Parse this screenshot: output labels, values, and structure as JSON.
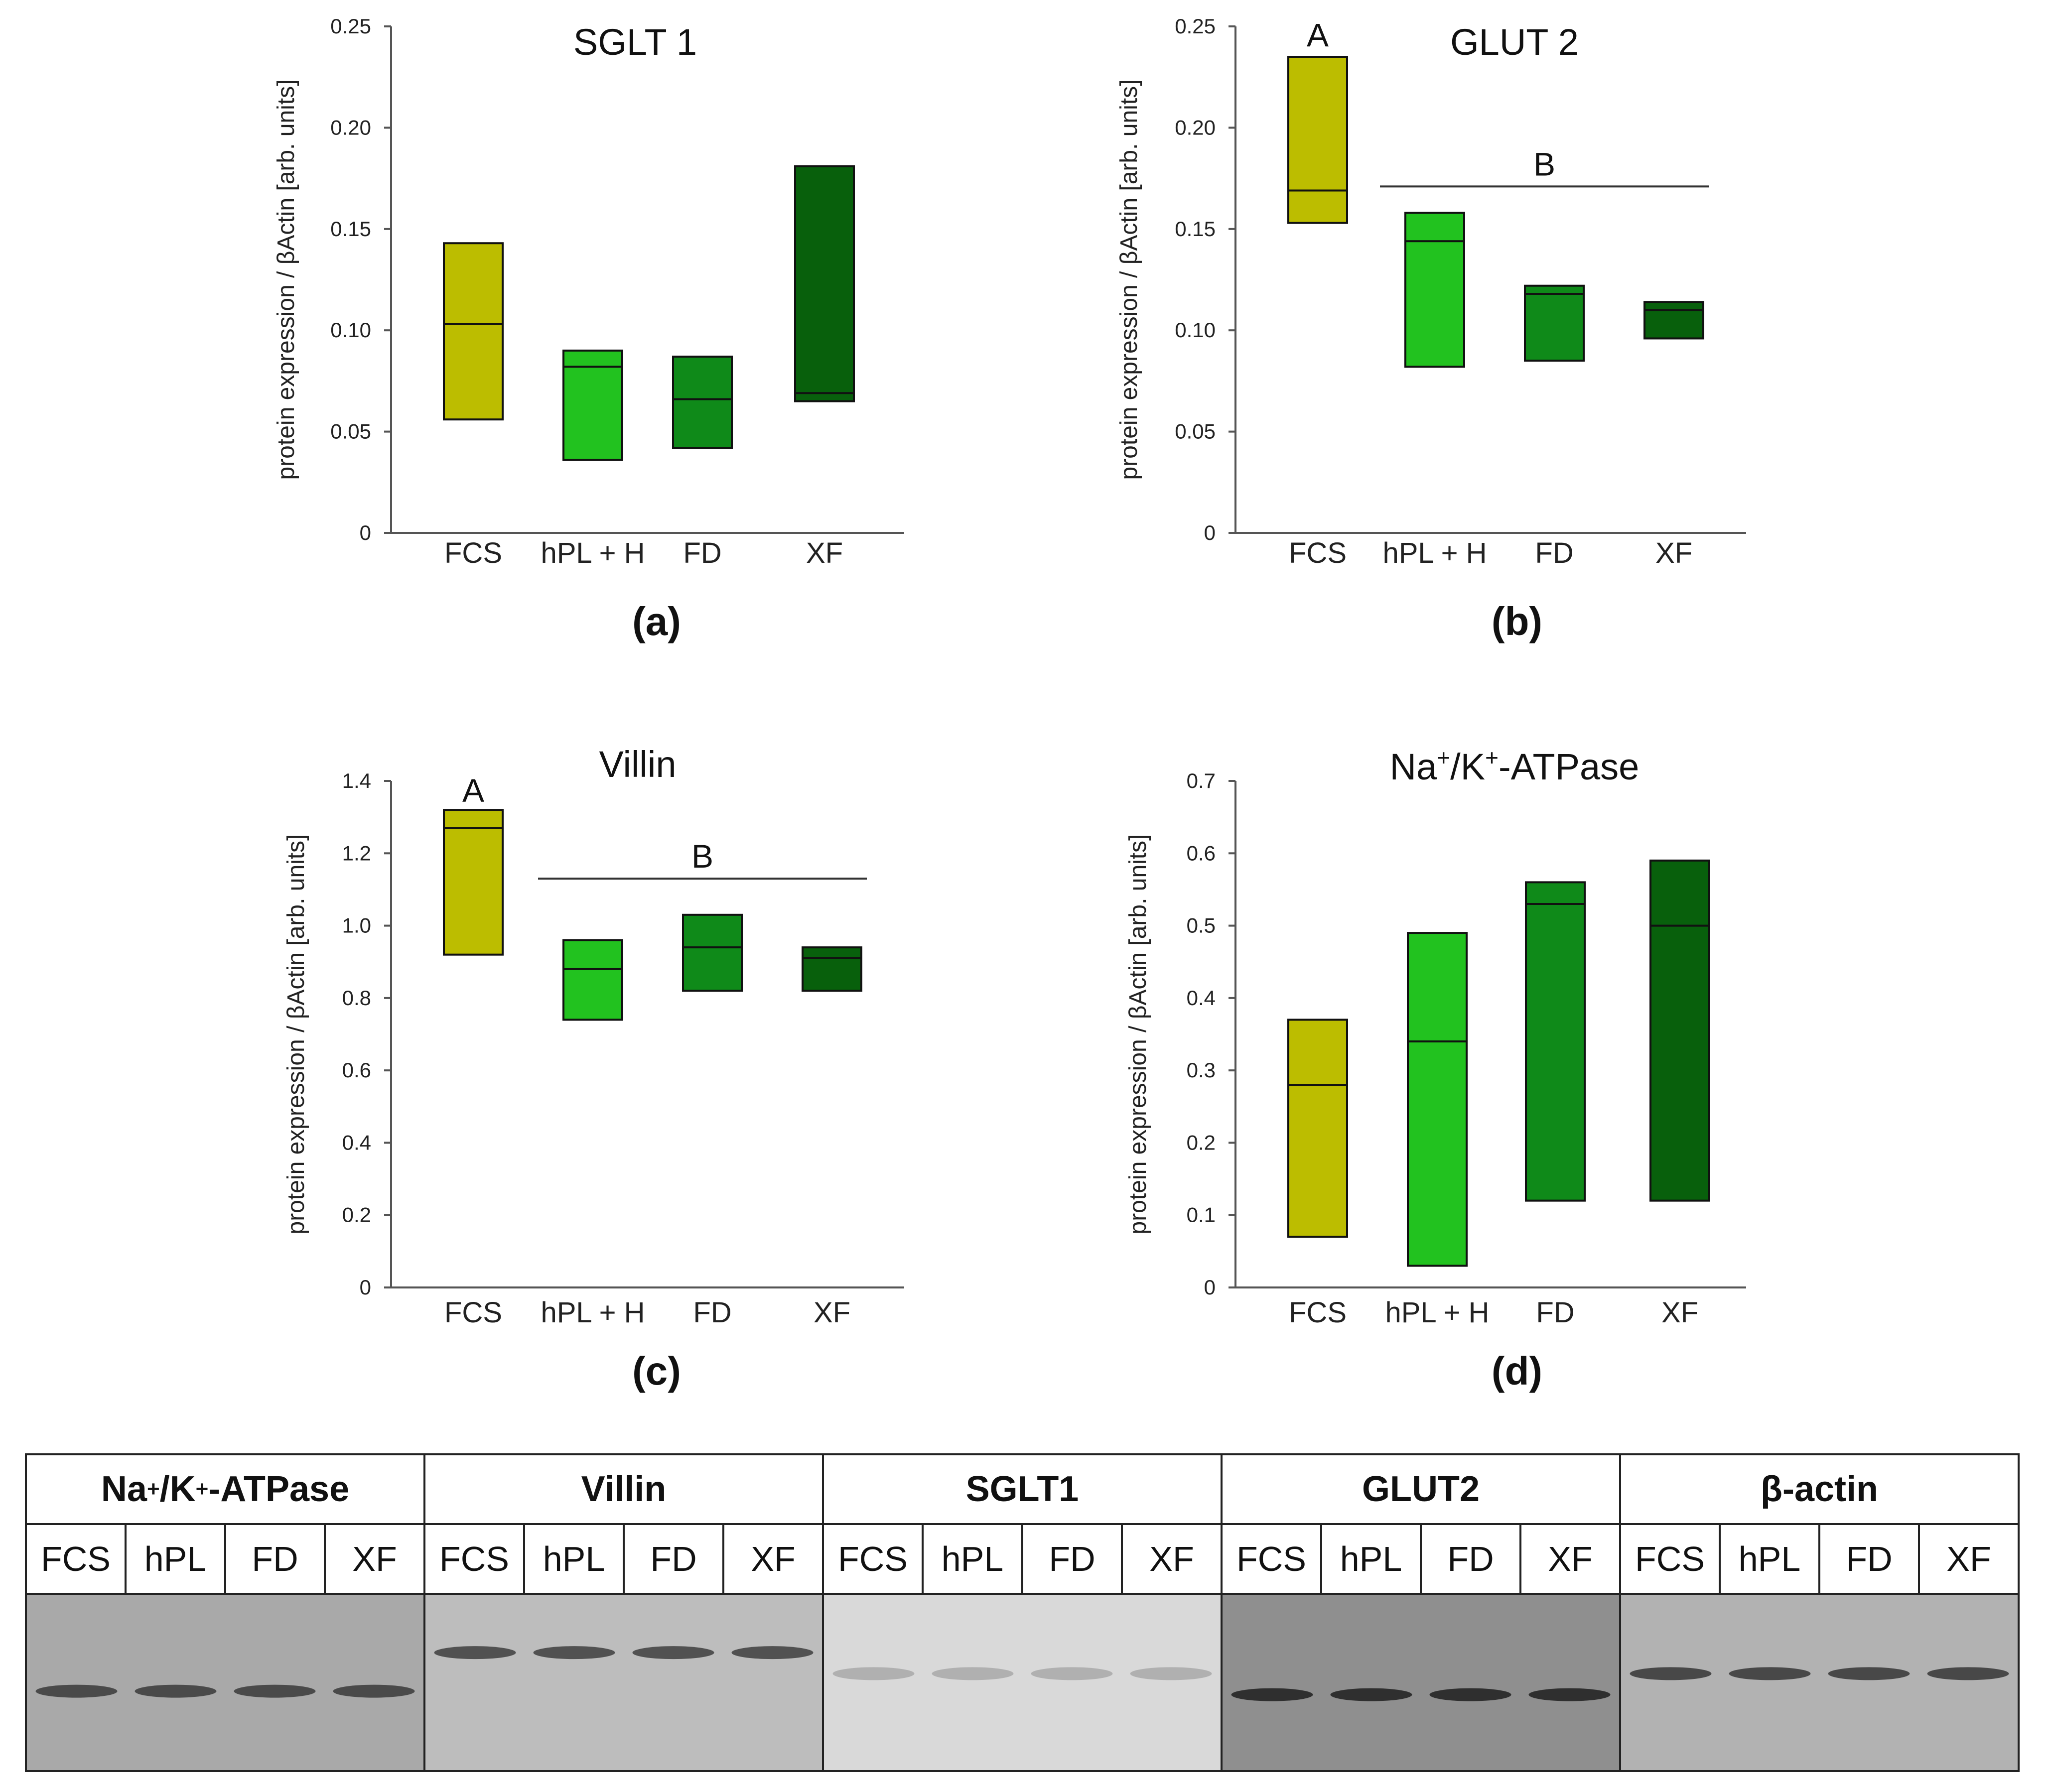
{
  "chart_data": [
    {
      "id": "a",
      "type": "box",
      "title": "SGLT 1",
      "panel_label": "(a)",
      "ylabel": "protein expression / βActin [arb. units]",
      "xlabel": "",
      "ylim": [
        0,
        0.25
      ],
      "yticks": [
        "0",
        "0.05",
        "0.10",
        "0.15",
        "0.20",
        "0.25"
      ],
      "yticks_values": [
        0,
        0.05,
        0.1,
        0.15,
        0.2,
        0.25
      ],
      "categories": [
        "FCS",
        "hPL + H",
        "FD",
        "XF"
      ],
      "boxes": [
        {
          "low": 0.056,
          "median": 0.103,
          "high": 0.143
        },
        {
          "low": 0.036,
          "median": 0.082,
          "high": 0.09
        },
        {
          "low": 0.042,
          "median": 0.066,
          "high": 0.087
        },
        {
          "low": 0.065,
          "median": 0.069,
          "high": 0.181
        }
      ],
      "group_labels": []
    },
    {
      "id": "b",
      "type": "box",
      "title": "GLUT 2",
      "panel_label": "(b)",
      "ylabel": "protein expression / βActin [arb. units]",
      "xlabel": "",
      "ylim": [
        0,
        0.25
      ],
      "yticks": [
        "0",
        "0.05",
        "0.10",
        "0.15",
        "0.20",
        "0.25"
      ],
      "yticks_values": [
        0,
        0.05,
        0.1,
        0.15,
        0.2,
        0.25
      ],
      "categories": [
        "FCS",
        "hPL + H",
        "FD",
        "XF"
      ],
      "boxes": [
        {
          "low": 0.153,
          "median": 0.169,
          "high": 0.235
        },
        {
          "low": 0.082,
          "median": 0.144,
          "high": 0.158
        },
        {
          "low": 0.085,
          "median": 0.118,
          "high": 0.122
        },
        {
          "low": 0.096,
          "median": 0.11,
          "high": 0.114
        }
      ],
      "group_labels": [
        {
          "text": "A",
          "categories": [
            0
          ],
          "value": 0.245,
          "bar": false
        },
        {
          "text": "B",
          "categories": [
            1,
            3
          ],
          "value": 0.171,
          "bar": true
        }
      ]
    },
    {
      "id": "c",
      "type": "box",
      "title": "Villin",
      "panel_label": "(c)",
      "ylabel": "protein expression / βActin [arb. units]",
      "xlabel": "",
      "ylim": [
        0,
        1.4
      ],
      "yticks": [
        "0",
        "0.2",
        "0.4",
        "0.6",
        "0.8",
        "1.0",
        "1.2",
        "1.4"
      ],
      "yticks_values": [
        0,
        0.2,
        0.4,
        0.6,
        0.8,
        1.0,
        1.2,
        1.4
      ],
      "categories": [
        "FCS",
        "hPL + H",
        "FD",
        "XF"
      ],
      "boxes": [
        {
          "low": 0.92,
          "median": 1.27,
          "high": 1.32
        },
        {
          "low": 0.74,
          "median": 0.88,
          "high": 0.96
        },
        {
          "low": 0.82,
          "median": 0.94,
          "high": 1.03
        },
        {
          "low": 0.82,
          "median": 0.91,
          "high": 0.94
        }
      ],
      "group_labels": [
        {
          "text": "A",
          "categories": [
            0
          ],
          "value": 1.37,
          "bar": false
        },
        {
          "text": "B",
          "categories": [
            1,
            3
          ],
          "value": 1.13,
          "bar": true
        }
      ]
    },
    {
      "id": "d",
      "type": "box",
      "title": "Na+/K+-ATPase",
      "title_parts": {
        "a": "Na",
        "b": "+",
        "c": "/K",
        "d": "+",
        "e": "-ATPase"
      },
      "panel_label": "(d)",
      "ylabel": "protein expression / βActin [arb. units]",
      "xlabel": "",
      "ylim": [
        0,
        0.7
      ],
      "yticks": [
        "0",
        "0.1",
        "0.2",
        "0.3",
        "0.4",
        "0.5",
        "0.6",
        "0.7"
      ],
      "yticks_values": [
        0,
        0.1,
        0.2,
        0.3,
        0.4,
        0.5,
        0.6,
        0.7
      ],
      "categories": [
        "FCS",
        "hPL + H",
        "FD",
        "XF"
      ],
      "boxes": [
        {
          "low": 0.07,
          "median": 0.28,
          "high": 0.37
        },
        {
          "low": 0.03,
          "median": 0.34,
          "high": 0.49
        },
        {
          "low": 0.12,
          "median": 0.53,
          "high": 0.56
        },
        {
          "low": 0.12,
          "median": 0.5,
          "high": 0.59
        }
      ],
      "group_labels": []
    }
  ],
  "colors": {
    "box_fills": [
      "#bcbd00",
      "#22c21f",
      "#0f8a19",
      "#08600c"
    ],
    "stroke": "#111111",
    "axis": "#555555"
  },
  "blot": {
    "panels": [
      {
        "title_a": "Na",
        "title_b": "+",
        "title_c": "/K",
        "title_d": "+",
        "title_e": "-ATPase",
        "lanes": [
          "FCS",
          "hPL",
          "FD",
          "XF"
        ],
        "band_level": 0.55,
        "background": "#a9a9a9",
        "band_color": "#3a3a3a"
      },
      {
        "title": "Villin",
        "lanes": [
          "FCS",
          "hPL",
          "FD",
          "XF"
        ],
        "band_level": 0.33,
        "background": "#bdbdbd",
        "band_color": "#3e3e3e"
      },
      {
        "title": "SGLT1",
        "lanes": [
          "FCS",
          "hPL",
          "FD",
          "XF"
        ],
        "band_level": 0.45,
        "background": "#d9d9d9",
        "band_color": "#a8a8a8"
      },
      {
        "title": "GLUT2",
        "lanes": [
          "FCS",
          "hPL",
          "FD",
          "XF"
        ],
        "band_level": 0.57,
        "background": "#8f8f8f",
        "band_color": "#1e1e1e"
      },
      {
        "title": "β-actin",
        "lanes": [
          "FCS",
          "hPL",
          "FD",
          "XF"
        ],
        "band_level": 0.45,
        "background": "#b2b2b2",
        "band_color": "#353535"
      }
    ]
  }
}
